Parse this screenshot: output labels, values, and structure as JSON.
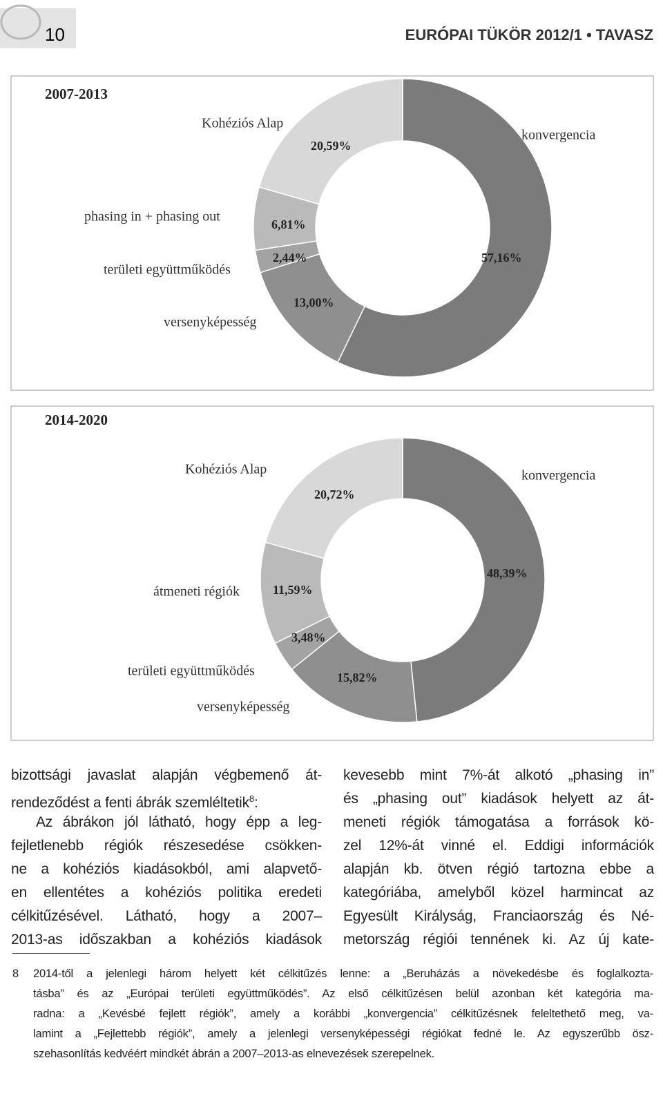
{
  "header": {
    "page_number": "10",
    "journal": "EURÓPAI TÜKÖR 2012/1 • TAVASZ"
  },
  "chart_data": [
    {
      "type": "donut",
      "title": "2007-2013",
      "categories": [
        "konvergencia",
        "versenyképesség",
        "területi együttműködés",
        "phasing in + phasing out",
        "Kohéziós Alap"
      ],
      "values": [
        57.16,
        13.0,
        2.44,
        6.81,
        20.59
      ],
      "value_labels": [
        "57,16%",
        "13,00%",
        "2,44%",
        "6,81%",
        "20,59%"
      ],
      "colors": [
        "#7b7b7b",
        "#8f8f8f",
        "#a3a3a3",
        "#bababa",
        "#d8d8d8"
      ]
    },
    {
      "type": "donut",
      "title": "2014-2020",
      "categories": [
        "konvergencia",
        "versenyképesség",
        "területi együttműködés",
        "átmeneti régiók",
        "Kohéziós Alap"
      ],
      "values": [
        48.39,
        15.82,
        3.48,
        11.59,
        20.72
      ],
      "value_labels": [
        "48,39%",
        "15,82%",
        "3,48%",
        "11,59%",
        "20,72%"
      ],
      "colors": [
        "#7b7b7b",
        "#8f8f8f",
        "#a3a3a3",
        "#bababa",
        "#d8d8d8"
      ]
    }
  ],
  "body": {
    "left_column": [
      "bizottsági javaslat alapján végbemenő át-",
      "rendeződést a fenti ábrák szemléltetik",
      "Az ábrákon jól látható, hogy épp a leg-",
      "fejletlenebb régiók részesedése csökken-",
      "ne a kohéziós kiadásokból, ami alapvető-",
      "en ellentétes a kohéziós politika eredeti",
      "célkitűzésével. Látható, hogy a 2007–",
      "2013-as időszakban a kohéziós kiadások"
    ],
    "footnote_ref": {
      "mark": "8",
      "after": ":"
    },
    "right_column": [
      "kevesebb mint 7%-át alkotó „phasing in”",
      "és „phasing out” kiadások helyett az át-",
      "meneti régiók támogatása a források kö-",
      "zel 12%-át vinné el. Eddigi információk",
      "alapján kb. ötven régió tartozna ebbe a",
      "kategóriába, amelyből közel harmincat az",
      "Egyesült Királyság, Franciaország és Né-",
      "metország régiói tennének ki. Az új kate-"
    ]
  },
  "footnote": {
    "number": "8",
    "lines": [
      "2014-től a jelenlegi három helyett két célkitűzés lenne: a „Beruházás a növekedésbe és foglalkozta-",
      "tásba” és az „Európai területi együttműködés”. Az első célkitűzésen belül azonban két kategória ma-",
      "radna: a „Kevésbé fejlett régiók”, amely a korábbi „konvergencia” célkitűzésnek feleltethető meg, va-",
      "lamint a „Fejlettebb régiók”, amely a jelenlegi versenyképességi régiókat fedné le. Az egyszerűbb ösz-",
      "szehasonlítás kedvéért mindkét ábrán a 2007–2013-as elnevezések szerepelnek."
    ]
  }
}
